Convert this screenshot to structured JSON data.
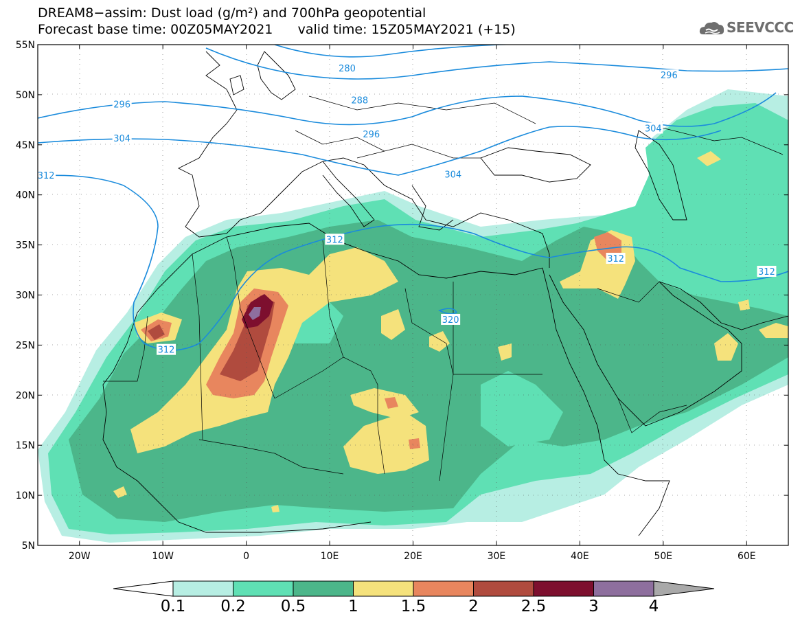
{
  "header": {
    "title_line1": "DREAM8−assim: Dust load (g/m²) and 700hPa geopotential",
    "title_line2": "Forecast base time: 00Z05MAY2021      valid time: 15Z05MAY2021 (+15)"
  },
  "logo": {
    "text": "SEEVCCC",
    "icon": "cloud-icon"
  },
  "map": {
    "projection": "lat-lon",
    "lon_range": [
      -25,
      65
    ],
    "lat_range": [
      5,
      55
    ],
    "lat_ticks": [
      "55N",
      "50N",
      "45N",
      "40N",
      "35N",
      "30N",
      "25N",
      "20N",
      "15N",
      "10N",
      "5N"
    ],
    "lon_ticks": [
      "20W",
      "10W",
      "0",
      "10E",
      "20E",
      "30E",
      "40E",
      "50E",
      "60E"
    ],
    "contour_labels": [
      {
        "text": "280",
        "lon": 12.1,
        "lat": 52.6
      },
      {
        "text": "288",
        "lon": 13.6,
        "lat": 49.4
      },
      {
        "text": "296",
        "lon": -14.9,
        "lat": 49.0
      },
      {
        "text": "296",
        "lon": 50.7,
        "lat": 51.9
      },
      {
        "text": "304",
        "lon": -14.9,
        "lat": 45.6
      },
      {
        "text": "304",
        "lon": 48.8,
        "lat": 46.6
      },
      {
        "text": "296",
        "lon": 15.0,
        "lat": 46.0
      },
      {
        "text": "304",
        "lon": 24.8,
        "lat": 42.0
      },
      {
        "text": "312",
        "lon": -24.0,
        "lat": 41.9
      },
      {
        "text": "312",
        "lon": 10.6,
        "lat": 35.5
      },
      {
        "text": "312",
        "lon": 44.3,
        "lat": 33.6
      },
      {
        "text": "312",
        "lon": 62.4,
        "lat": 32.3
      },
      {
        "text": "320",
        "lon": 24.5,
        "lat": 27.5
      },
      {
        "text": "312",
        "lon": -9.6,
        "lat": 24.5
      }
    ]
  },
  "colorbar": {
    "labels": [
      "0.1",
      "0.2",
      "0.5",
      "1",
      "1.5",
      "2",
      "2.5",
      "3",
      "4"
    ],
    "colors": [
      "#ffffff",
      "#b7eee3",
      "#5fe0b4",
      "#4cb68a",
      "#f5e27c",
      "#e8865e",
      "#b04b3e",
      "#7d0f2e",
      "#8e6f9e",
      "#a9a9a9"
    ]
  }
}
